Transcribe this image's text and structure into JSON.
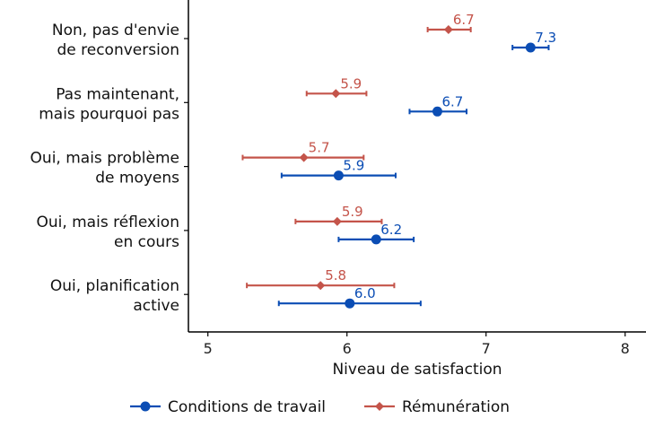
{
  "chart_data": {
    "type": "scatter",
    "title": "",
    "xlabel": "Niveau de satisfaction",
    "ylabel": "",
    "xlim": [
      4.86,
      8.15
    ],
    "xticks": [
      "5",
      "6",
      "7",
      "8"
    ],
    "grid": false,
    "legend_position": "bottom",
    "categories": [
      [
        "Non, pas d'envie",
        "de reconversion"
      ],
      [
        "Pas maintenant,",
        "mais pourquoi pas"
      ],
      [
        "Oui, mais problème",
        "de moyens"
      ],
      [
        "Oui, mais réflexion",
        "en cours"
      ],
      [
        "Oui, planification",
        "active"
      ]
    ],
    "series": [
      {
        "name": "Conditions de travail",
        "color": "#0b4db4",
        "marker": "circle",
        "values": [
          7.32,
          6.65,
          5.94,
          6.21,
          6.02
        ],
        "labels": [
          "7.3",
          "6.7",
          "5.9",
          "6.2",
          "6.0"
        ],
        "lower": [
          7.19,
          6.45,
          5.53,
          5.94,
          5.51
        ],
        "upper": [
          7.45,
          6.86,
          6.35,
          6.48,
          6.53
        ]
      },
      {
        "name": "Rémunération",
        "color": "#c4544a",
        "marker": "diamond",
        "values": [
          6.73,
          5.92,
          5.69,
          5.93,
          5.81
        ],
        "labels": [
          "6.7",
          "5.9",
          "5.7",
          "5.9",
          "5.8"
        ],
        "lower": [
          6.58,
          5.71,
          5.25,
          5.63,
          5.28
        ],
        "upper": [
          6.89,
          6.14,
          6.12,
          6.25,
          6.34
        ]
      }
    ]
  }
}
